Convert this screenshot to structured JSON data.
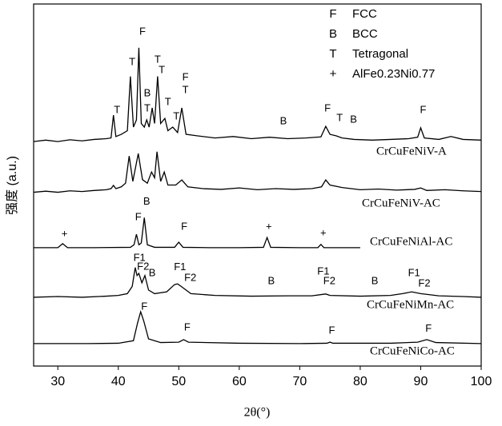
{
  "chart_data": {
    "type": "line",
    "x_label": "2θ(°)",
    "y_label": "强度 (a.u.)",
    "xlim": [
      26,
      100
    ],
    "xticks": [
      30,
      40,
      50,
      60,
      70,
      80,
      90,
      100
    ],
    "ylim": [
      0,
      100
    ],
    "legend": [
      {
        "symbol": "F",
        "label": "FCC"
      },
      {
        "symbol": "B",
        "label": "BCC"
      },
      {
        "symbol": "T",
        "label": "Tetragonal"
      },
      {
        "symbol": "+",
        "label": "AlFe0.23Ni0.77"
      }
    ],
    "series": [
      {
        "name": "CrCuFeNiV-A",
        "color": "#000000",
        "x": [
          26,
          28,
          30,
          32,
          34,
          36,
          38,
          38.8,
          39.2,
          39.6,
          40.5,
          41.5,
          42,
          42.5,
          43,
          43.4,
          43.8,
          44.3,
          44.7,
          45.1,
          45.6,
          46,
          46.5,
          47,
          47.7,
          48.2,
          49,
          49.8,
          50.5,
          51.2,
          53,
          56,
          59,
          62,
          65,
          68,
          71,
          73.5,
          74.3,
          75,
          76,
          77,
          79,
          82,
          85,
          88,
          89.5,
          90,
          90.6,
          93,
          95,
          97,
          100
        ],
        "values": [
          62,
          62.4,
          62,
          62.5,
          62.2,
          62.6,
          62.8,
          63,
          69.3,
          63.4,
          64,
          65,
          80,
          66,
          68,
          87.9,
          67,
          66,
          68,
          66,
          71.3,
          67,
          80,
          67,
          68.4,
          65,
          66,
          64.5,
          71.3,
          64,
          63.6,
          63,
          63.4,
          62.8,
          63.2,
          62.8,
          63,
          63.3,
          66.2,
          64,
          63.6,
          63,
          62.6,
          62.4,
          62.6,
          62.8,
          63.2,
          65.8,
          63,
          62.6,
          63.4,
          62.6,
          62.4
        ]
      },
      {
        "name": "CrCuFeNiV-AC",
        "color": "#000000",
        "x": [
          26,
          28,
          30,
          32,
          34,
          36,
          38,
          38.8,
          39.2,
          39.6,
          40.5,
          41.2,
          41.8,
          42.4,
          43.3,
          44,
          44.8,
          45.5,
          46,
          46.4,
          47,
          47.6,
          48.2,
          49.5,
          50.5,
          51.5,
          54,
          57,
          60,
          63,
          66,
          69,
          72,
          73.6,
          74.3,
          75,
          77,
          80,
          83,
          86,
          89,
          90,
          91,
          94,
          97,
          100
        ],
        "values": [
          48,
          48.3,
          48,
          48.4,
          48.2,
          48.5,
          48.7,
          49,
          49.9,
          49,
          49.5,
          50.5,
          58,
          51,
          58.7,
          51.5,
          50.5,
          53.6,
          52,
          59.2,
          51,
          53.6,
          50,
          50,
          51.4,
          49.5,
          49,
          48.8,
          49.2,
          48.7,
          49,
          48.8,
          49,
          49.5,
          51.4,
          50,
          49.3,
          48.7,
          48.9,
          48.6,
          48.8,
          49.2,
          48.5,
          48.7,
          48.4,
          48.2
        ]
      },
      {
        "name": "CrCuFeNiAl-AC",
        "color": "#000000",
        "x": [
          26,
          30,
          30.8,
          31.6,
          36,
          42,
          42.6,
          43,
          43.4,
          43.8,
          44.3,
          44.8,
          46,
          49.3,
          50,
          50.7,
          55,
          60,
          64,
          64.6,
          65.2,
          70,
          73,
          73.5,
          74,
          78,
          80
        ],
        "values": [
          32.7,
          32.7,
          33.8,
          32.7,
          32.7,
          32.8,
          33.5,
          36.4,
          33.5,
          34,
          41,
          33.5,
          32.8,
          32.8,
          34.2,
          32.8,
          32.7,
          32.7,
          32.8,
          35.5,
          32.8,
          32.7,
          32.7,
          33.6,
          32.7,
          32.7,
          32.7
        ]
      },
      {
        "name": "CrCuFeNiMn-AC",
        "color": "#000000",
        "x": [
          26,
          30,
          34,
          38,
          40,
          41.5,
          42.3,
          42.8,
          43.1,
          43.4,
          43.9,
          44.4,
          45,
          46,
          48,
          49.3,
          49.8,
          50.4,
          52,
          56,
          62,
          68,
          72,
          73.8,
          74.3,
          75,
          80,
          85,
          87,
          88.5,
          90,
          93,
          97,
          100
        ],
        "values": [
          19,
          19.2,
          19,
          19.3,
          19.5,
          20,
          22,
          27.2,
          25,
          25.6,
          23,
          25,
          21,
          20,
          20.5,
          22.5,
          22.7,
          22,
          20,
          19.5,
          19.3,
          19.4,
          19.4,
          19.8,
          19.9,
          19.5,
          19.3,
          19.5,
          20,
          20.5,
          20,
          19.4,
          19.2,
          19
        ]
      },
      {
        "name": "CrCuFeNiCo-AC",
        "color": "#000000",
        "x": [
          26,
          35,
          40,
          42.5,
          43.2,
          43.7,
          44.2,
          45,
          47,
          50,
          50.8,
          51.6,
          60,
          70,
          74.5,
          75,
          75.5,
          85,
          89.5,
          91,
          92.5,
          100
        ],
        "values": [
          6.2,
          6.2,
          6.3,
          7,
          12,
          15,
          12.5,
          7.5,
          6.5,
          6.6,
          7.3,
          6.6,
          6.3,
          6.2,
          6.3,
          6.6,
          6.3,
          6.3,
          6.6,
          7.3,
          6.5,
          6.2
        ]
      }
    ],
    "annotations": [
      {
        "text": "F",
        "x": 44.0,
        "y": 92.3
      },
      {
        "text": "T",
        "x": 42.3,
        "y": 83.9
      },
      {
        "text": "T",
        "x": 46.5,
        "y": 84.5
      },
      {
        "text": "T",
        "x": 47.2,
        "y": 81.7
      },
      {
        "text": "B",
        "x": 44.8,
        "y": 75.3
      },
      {
        "text": "T",
        "x": 44.8,
        "y": 71.1
      },
      {
        "text": "T",
        "x": 48.2,
        "y": 72.8
      },
      {
        "text": "T",
        "x": 49.6,
        "y": 68.9
      },
      {
        "text": "F",
        "x": 51.1,
        "y": 79.7
      },
      {
        "text": "T",
        "x": 51.1,
        "y": 76.2
      },
      {
        "text": "T",
        "x": 39.8,
        "y": 70.6
      },
      {
        "text": "B",
        "x": 67.3,
        "y": 67.5
      },
      {
        "text": "F",
        "x": 74.6,
        "y": 71.1
      },
      {
        "text": "T",
        "x": 76.6,
        "y": 68.4
      },
      {
        "text": "B",
        "x": 78.9,
        "y": 68
      },
      {
        "text": "F",
        "x": 90.4,
        "y": 70.6
      },
      {
        "text": "F",
        "x": 43.3,
        "y": 41.1
      },
      {
        "text": "B",
        "x": 44.7,
        "y": 45.3
      },
      {
        "text": "F",
        "x": 50.9,
        "y": 38.4
      },
      {
        "text": "+",
        "x": 31.1,
        "y": 36.4
      },
      {
        "text": "+",
        "x": 64.9,
        "y": 38.4
      },
      {
        "text": "+",
        "x": 73.9,
        "y": 36.6
      },
      {
        "text": "F1",
        "x": 43.5,
        "y": 29.8
      },
      {
        "text": "F2",
        "x": 44.1,
        "y": 27.4
      },
      {
        "text": "B",
        "x": 45.6,
        "y": 25.6
      },
      {
        "text": "F1",
        "x": 50.2,
        "y": 27.2
      },
      {
        "text": "F2",
        "x": 51.9,
        "y": 24.3
      },
      {
        "text": "B",
        "x": 65.3,
        "y": 23.4
      },
      {
        "text": "F1",
        "x": 73.9,
        "y": 26
      },
      {
        "text": "F2",
        "x": 74.9,
        "y": 23.4
      },
      {
        "text": "B",
        "x": 82.4,
        "y": 23.4
      },
      {
        "text": "F1",
        "x": 88.9,
        "y": 25.6
      },
      {
        "text": "F2",
        "x": 90.6,
        "y": 22.7
      },
      {
        "text": "F",
        "x": 44.3,
        "y": 16.3
      },
      {
        "text": "F",
        "x": 51.4,
        "y": 10.6
      },
      {
        "text": "F",
        "x": 75.3,
        "y": 9.7
      },
      {
        "text": "F",
        "x": 91.3,
        "y": 10.2
      }
    ]
  }
}
